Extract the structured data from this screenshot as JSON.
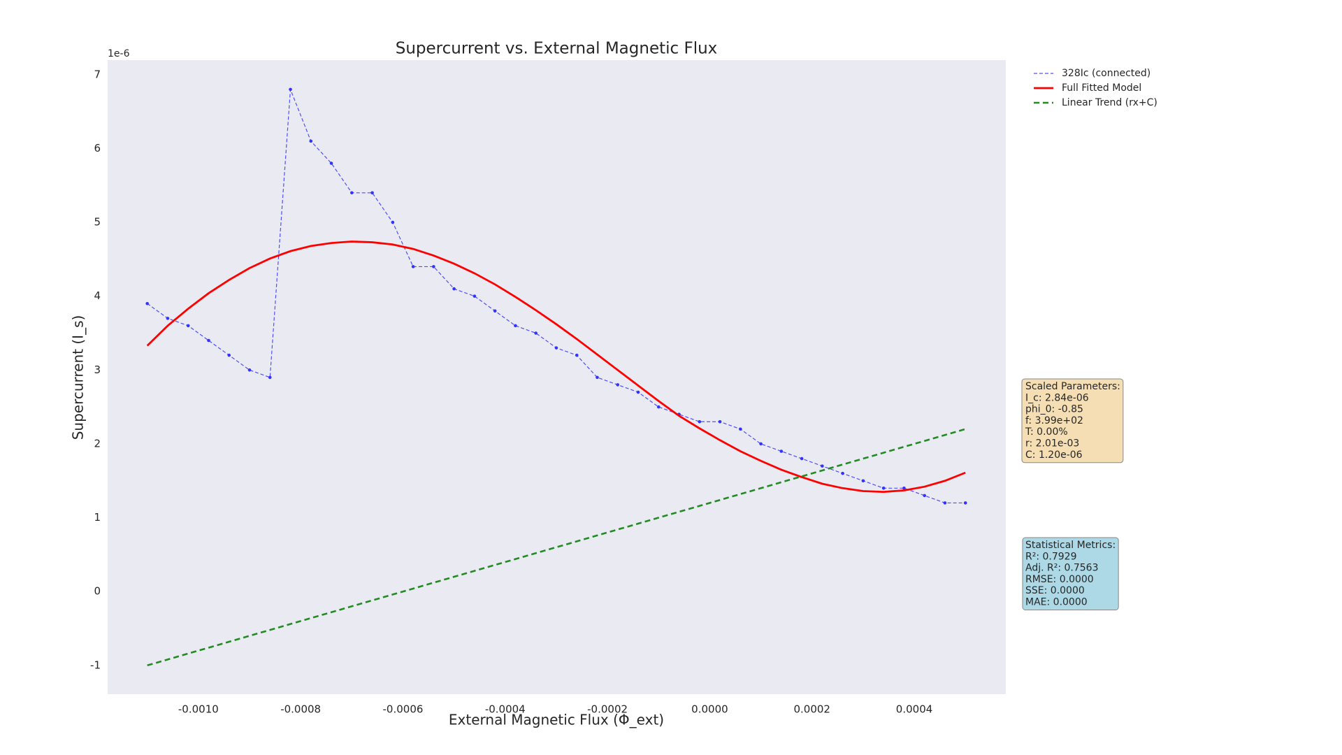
{
  "chart_data": {
    "type": "line",
    "title": "Supercurrent vs. External Magnetic Flux",
    "xlabel": "External Magnetic Flux (Φ_ext)",
    "ylabel": "Supercurrent (I_s)",
    "y_offset_label": "1e-6",
    "x": [
      -0.0011,
      -0.00106,
      -0.00102,
      -0.00098,
      -0.00094,
      -0.0009,
      -0.00086,
      -0.00082,
      -0.00078,
      -0.00074,
      -0.0007,
      -0.00066,
      -0.00062,
      -0.00058,
      -0.00054,
      -0.0005,
      -0.00046,
      -0.00042,
      -0.00038,
      -0.00034,
      -0.0003,
      -0.00026,
      -0.00022,
      -0.00018,
      -0.00014,
      -0.0001,
      -6e-05,
      -2e-05,
      2e-05,
      6e-05,
      0.0001,
      0.00014,
      0.00018,
      0.00022,
      0.00026,
      0.0003,
      0.00034,
      0.00038,
      0.00042,
      0.00046,
      0.0005
    ],
    "series": [
      {
        "name": "328Ic (connected)",
        "color": "#3333ff",
        "linestyle": "dashed-fine",
        "markers": true,
        "values": [
          3.9,
          3.7,
          3.6,
          3.4,
          3.2,
          3.0,
          2.9,
          6.8,
          6.1,
          5.8,
          5.4,
          5.4,
          5.0,
          4.4,
          4.4,
          4.1,
          4.0,
          3.8,
          3.6,
          3.5,
          3.3,
          3.2,
          2.9,
          2.8,
          2.7,
          2.5,
          2.4,
          2.3,
          2.3,
          2.2,
          2.0,
          1.9,
          1.8,
          1.7,
          1.6,
          1.5,
          1.4,
          1.4,
          1.3,
          1.2,
          1.2
        ]
      },
      {
        "name": "Full Fitted Model",
        "color": "#ff0000",
        "linestyle": "solid",
        "markers": false,
        "values": [
          3.33,
          3.6,
          3.83,
          4.04,
          4.22,
          4.38,
          4.51,
          4.61,
          4.68,
          4.72,
          4.74,
          4.73,
          4.7,
          4.64,
          4.55,
          4.44,
          4.31,
          4.16,
          3.99,
          3.81,
          3.62,
          3.42,
          3.21,
          3.0,
          2.79,
          2.58,
          2.38,
          2.21,
          2.05,
          1.9,
          1.77,
          1.65,
          1.55,
          1.46,
          1.4,
          1.36,
          1.35,
          1.37,
          1.42,
          1.5,
          1.61
        ]
      },
      {
        "name": "Linear Trend (rx+C)",
        "color": "#228b22",
        "linestyle": "dashed",
        "markers": false,
        "values": [
          -1.0,
          -0.92,
          -0.84,
          -0.76,
          -0.68,
          -0.6,
          -0.52,
          -0.44,
          -0.36,
          -0.28,
          -0.2,
          -0.12,
          -0.04,
          0.04,
          0.12,
          0.2,
          0.28,
          0.36,
          0.44,
          0.52,
          0.6,
          0.68,
          0.76,
          0.84,
          0.92,
          1.0,
          1.08,
          1.16,
          1.24,
          1.32,
          1.4,
          1.48,
          1.56,
          1.64,
          1.72,
          1.8,
          1.88,
          1.96,
          2.04,
          2.12,
          2.2
        ]
      }
    ],
    "xlim": [
      -0.0011775,
      0.000579
    ],
    "ylim": [
      -1.39,
      7.197
    ],
    "xticks": [
      {
        "value": -0.001,
        "label": "-0.0010"
      },
      {
        "value": -0.0008,
        "label": "-0.0008"
      },
      {
        "value": -0.0006,
        "label": "-0.0006"
      },
      {
        "value": -0.0004,
        "label": "-0.0004"
      },
      {
        "value": -0.0002,
        "label": "-0.0002"
      },
      {
        "value": 0,
        "label": "0.0000"
      },
      {
        "value": 0.0002,
        "label": "0.0002"
      },
      {
        "value": 0.0004,
        "label": "0.0004"
      }
    ],
    "yticks": [
      -1,
      0,
      1,
      2,
      3,
      4,
      5,
      6,
      7
    ],
    "grid": false,
    "legend": "outside upper right",
    "annotations": [
      {
        "lines": [
          "Scaled Parameters:",
          "I_c: 2.84e-06",
          "phi_0: -0.85",
          "f: 3.99e+02",
          "T: 0.00%",
          "r: 2.01e-03",
          "C: 1.20e-06"
        ],
        "color": "#f5deb3"
      },
      {
        "lines": [
          "Statistical Metrics:",
          "R²: 0.7929",
          "Adj. R²: 0.7563",
          "RMSE: 0.0000",
          "SSE: 0.0000",
          "MAE: 0.0000"
        ],
        "color": "#add8e6"
      }
    ]
  }
}
